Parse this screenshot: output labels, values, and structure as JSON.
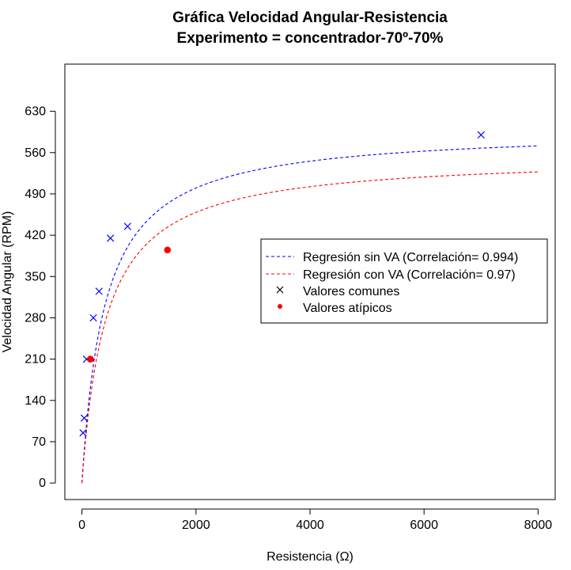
{
  "chart_data": {
    "type": "scatter",
    "title": "Gráfica Velocidad Angular-Resistencia",
    "subtitle": "Experimento = concentrador-70º-70%",
    "xlabel": "Resistencia (Ω)",
    "ylabel": "Velocidad Angular (RPM)",
    "xlim": [
      -300,
      8300
    ],
    "ylim": [
      -28,
      710
    ],
    "x_ticks": [
      0,
      2000,
      4000,
      6000,
      8000
    ],
    "y_ticks": [
      0,
      70,
      140,
      210,
      280,
      350,
      420,
      490,
      560,
      630
    ],
    "grid": false,
    "legend_position": "right-center",
    "series": [
      {
        "name": "Regresión sin VA (Correlación= 0.994)",
        "kind": "dashed-line",
        "color": "#0000ff",
        "model": {
          "vmax": 600,
          "k": 400
        },
        "x_range": [
          0,
          8000
        ]
      },
      {
        "name": "Regresión con VA (Correlación= 0.97)",
        "kind": "dashed-line",
        "color": "#ff0000",
        "model": {
          "vmax": 555,
          "k": 420
        },
        "x_range": [
          0,
          8000
        ]
      },
      {
        "name": "Valores comunes",
        "kind": "cross-points",
        "color": "#0000ff",
        "legend_color": "#000000",
        "points": [
          [
            20,
            85
          ],
          [
            40,
            110
          ],
          [
            80,
            210
          ],
          [
            200,
            280
          ],
          [
            300,
            325
          ],
          [
            500,
            415
          ],
          [
            800,
            435
          ],
          [
            7000,
            590
          ]
        ]
      },
      {
        "name": "Valores atípicos",
        "kind": "dot-points",
        "color": "#ff0000",
        "points": [
          [
            150,
            210
          ],
          [
            1500,
            395
          ]
        ]
      }
    ]
  }
}
